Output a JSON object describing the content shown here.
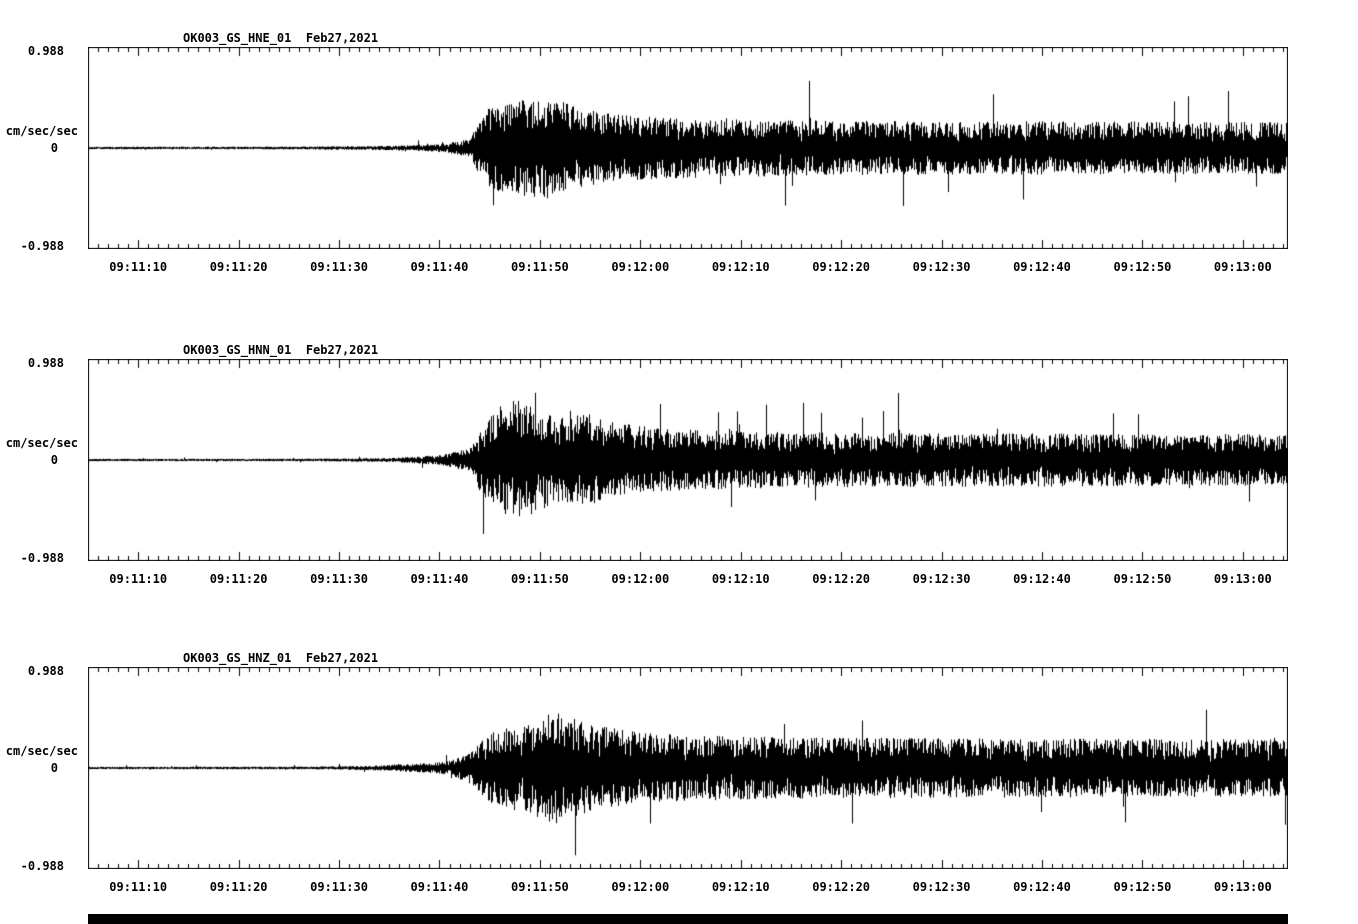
{
  "page": {
    "background": "#ffffff",
    "trace_color": "#000000"
  },
  "chart_data": [
    {
      "type": "line",
      "title": "OK003_GS_HNE_01  Feb27,2021",
      "station": "OK003_GS_HNE_01",
      "date": "Feb27,2021",
      "ylabel": "cm/sec/sec",
      "y_tick_labels": {
        "top": "0.988",
        "zero": "0",
        "bottom": "-0.988"
      },
      "ylim": [
        -0.988,
        0.988
      ],
      "x_tick_labels": [
        "09:11:10",
        "09:11:20",
        "09:11:30",
        "09:11:40",
        "09:11:50",
        "09:12:00",
        "09:12:10",
        "09:12:20",
        "09:12:30",
        "09:12:40",
        "09:12:50",
        "09:13:00"
      ],
      "x_tick_seconds": [
        70,
        80,
        90,
        100,
        110,
        120,
        130,
        140,
        150,
        160,
        170,
        180
      ],
      "x_range_s": [
        65,
        184.5
      ],
      "seed": 101,
      "envelope": [
        [
          0,
          0.013
        ],
        [
          20,
          0.014
        ],
        [
          30,
          0.022
        ],
        [
          35,
          0.04
        ],
        [
          38,
          0.09
        ],
        [
          39,
          0.3
        ],
        [
          40,
          0.42
        ],
        [
          43,
          0.48
        ],
        [
          46,
          0.52
        ],
        [
          48,
          0.44
        ],
        [
          51,
          0.36
        ],
        [
          55,
          0.32
        ],
        [
          60,
          0.3
        ],
        [
          70,
          0.28
        ],
        [
          85,
          0.27
        ],
        [
          100,
          0.27
        ],
        [
          121,
          0.26
        ]
      ]
    },
    {
      "type": "line",
      "title": "OK003_GS_HNN_01  Feb27,2021",
      "station": "OK003_GS_HNN_01",
      "date": "Feb27,2021",
      "ylabel": "cm/sec/sec",
      "y_tick_labels": {
        "top": "0.988",
        "zero": "0",
        "bottom": "-0.988"
      },
      "ylim": [
        -0.988,
        0.988
      ],
      "x_tick_labels": [
        "09:11:10",
        "09:11:20",
        "09:11:30",
        "09:11:40",
        "09:11:50",
        "09:12:00",
        "09:12:10",
        "09:12:20",
        "09:12:30",
        "09:12:40",
        "09:12:50",
        "09:13:00"
      ],
      "x_tick_seconds": [
        70,
        80,
        90,
        100,
        110,
        120,
        130,
        140,
        150,
        160,
        170,
        180
      ],
      "x_range_s": [
        65,
        184.5
      ],
      "seed": 202,
      "envelope": [
        [
          0,
          0.012
        ],
        [
          22,
          0.013
        ],
        [
          30,
          0.02
        ],
        [
          35,
          0.05
        ],
        [
          38,
          0.12
        ],
        [
          39,
          0.32
        ],
        [
          41,
          0.55
        ],
        [
          43,
          0.62
        ],
        [
          45,
          0.5
        ],
        [
          47,
          0.44
        ],
        [
          50,
          0.48
        ],
        [
          53,
          0.38
        ],
        [
          57,
          0.32
        ],
        [
          62,
          0.3
        ],
        [
          70,
          0.28
        ],
        [
          90,
          0.27
        ],
        [
          121,
          0.26
        ]
      ]
    },
    {
      "type": "line",
      "title": "OK003_GS_HNZ_01  Feb27,2021",
      "station": "OK003_GS_HNZ_01",
      "date": "Feb27,2021",
      "ylabel": "cm/sec/sec",
      "y_tick_labels": {
        "top": "0.988",
        "zero": "0",
        "bottom": "-0.988"
      },
      "ylim": [
        -0.988,
        0.988
      ],
      "x_tick_labels": [
        "09:11:10",
        "09:11:20",
        "09:11:30",
        "09:11:40",
        "09:11:50",
        "09:12:00",
        "09:12:10",
        "09:12:20",
        "09:12:30",
        "09:12:40",
        "09:12:50",
        "09:13:00"
      ],
      "x_tick_seconds": [
        70,
        80,
        90,
        100,
        110,
        120,
        130,
        140,
        150,
        160,
        170,
        180
      ],
      "x_range_s": [
        65,
        184.5
      ],
      "seed": 303,
      "envelope": [
        [
          0,
          0.012
        ],
        [
          22,
          0.014
        ],
        [
          28,
          0.022
        ],
        [
          33,
          0.045
        ],
        [
          36,
          0.07
        ],
        [
          38,
          0.16
        ],
        [
          40,
          0.35
        ],
        [
          42,
          0.42
        ],
        [
          44,
          0.46
        ],
        [
          46,
          0.58
        ],
        [
          48,
          0.52
        ],
        [
          51,
          0.42
        ],
        [
          55,
          0.36
        ],
        [
          60,
          0.33
        ],
        [
          70,
          0.31
        ],
        [
          90,
          0.3
        ],
        [
          121,
          0.29
        ]
      ]
    }
  ]
}
